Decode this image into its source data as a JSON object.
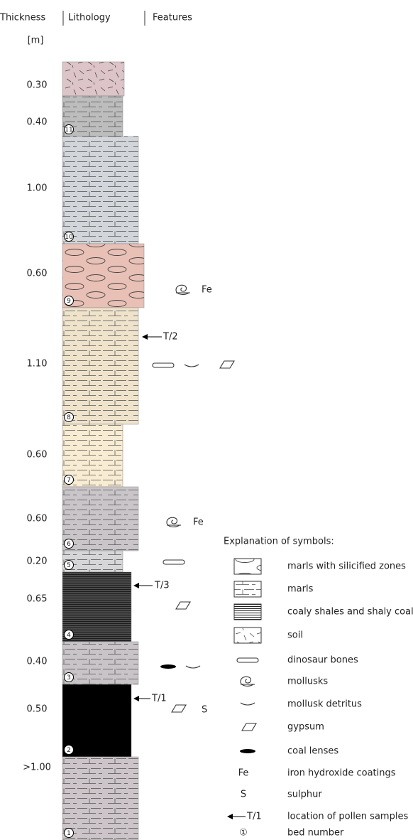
{
  "header": {
    "thickness": "Thickness",
    "lithology": "Lithology",
    "features": "Features",
    "unit": "[m]"
  },
  "beds": [
    {
      "thickness": "0.30"
    },
    {
      "thickness": "0.40",
      "number": "11"
    },
    {
      "thickness": "1.00",
      "number": "10"
    },
    {
      "thickness": "0.60",
      "number": "9",
      "fe": "Fe"
    },
    {
      "thickness": "1.10",
      "number": "8",
      "sample": "T/2"
    },
    {
      "thickness": "0.60",
      "number": "7"
    },
    {
      "thickness": "0.60",
      "number": "6",
      "fe": "Fe"
    },
    {
      "thickness": "0.20",
      "number": "5"
    },
    {
      "thickness": "0.65",
      "number": "4",
      "sample": "T/3"
    },
    {
      "thickness": "0.40",
      "number": "3"
    },
    {
      "thickness": "0.50",
      "number": "2",
      "sample": "T/1",
      "sulphur": "S"
    },
    {
      "thickness": ">1.00",
      "number": "1"
    }
  ],
  "legend": {
    "title": "Explanation of symbols:",
    "items": [
      {
        "label": "marls with silicified zones"
      },
      {
        "label": "marls"
      },
      {
        "label": "coaly shales and shaly coal"
      },
      {
        "label": "soil"
      },
      {
        "label": "dinosaur bones"
      },
      {
        "label": "mollusks"
      },
      {
        "label": "mollusk detritus"
      },
      {
        "label": "gypsum"
      },
      {
        "label": "coal lenses"
      },
      {
        "symbol": "Fe",
        "label": "iron hydroxide coatings"
      },
      {
        "symbol": "S",
        "label": "sulphur"
      },
      {
        "symbol": "T/1",
        "label": "location of pollen samples"
      },
      {
        "symbol": "①",
        "label": "bed number"
      }
    ]
  }
}
